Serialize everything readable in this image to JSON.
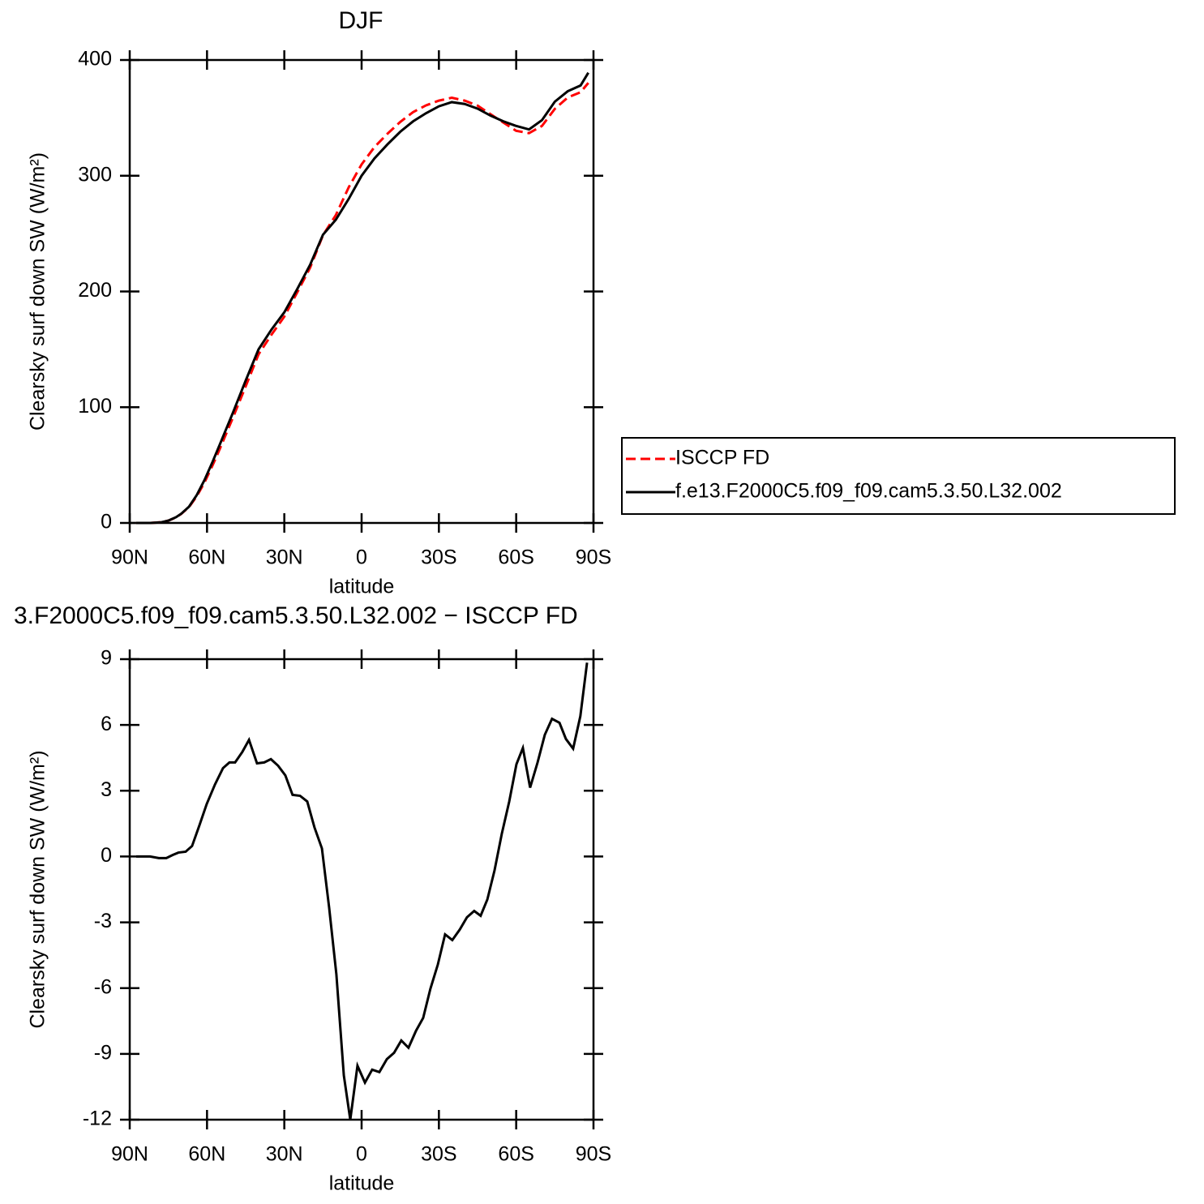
{
  "chart_data": [
    {
      "type": "line",
      "title": "DJF",
      "xlabel": "latitude",
      "ylabel": "Clearsky surf down SW (W/m²)",
      "x": [
        87.5,
        82,
        78,
        75,
        72,
        70,
        67,
        64,
        61,
        58,
        55,
        50,
        45,
        40,
        35,
        30,
        25,
        20,
        15,
        10,
        5,
        0,
        -5,
        -10,
        -15,
        -20,
        -25,
        -30,
        -35,
        -40,
        -45,
        -50,
        -55,
        -60,
        -65,
        -70,
        -75,
        -80,
        -85,
        -88
      ],
      "series": [
        {
          "name": "ISCCP FD",
          "color": "#ff0000",
          "style": "dashed",
          "values": [
            0,
            0,
            0.6,
            2,
            4.9,
            7.8,
            13.7,
            23,
            34.9,
            49,
            64.2,
            90.7,
            118,
            145.7,
            162.6,
            178.3,
            199.2,
            220.5,
            248.6,
            266,
            290,
            309.8,
            324.8,
            336.2,
            346.5,
            355,
            360.8,
            364.9,
            367.4,
            364.9,
            360.6,
            353.2,
            346,
            338.8,
            336.8,
            343,
            357.8,
            367.6,
            372.2,
            380.2
          ]
        },
        {
          "name": "f.e13.F2000C5.f09_f09.cam5.3.50.L32.002",
          "color": "#000000",
          "style": "solid",
          "values": [
            0,
            0,
            0.5,
            2,
            5,
            8,
            14,
            24,
            37,
            52,
            68,
            95,
            123,
            150,
            167,
            182,
            202,
            223,
            249,
            262,
            280,
            300,
            315,
            327,
            338,
            347,
            354,
            360,
            363.6,
            362,
            358,
            352,
            347,
            343,
            340,
            348,
            364,
            373,
            378,
            389
          ]
        }
      ],
      "xlim": [
        90,
        -90
      ],
      "xticks": [
        {
          "value": 90,
          "label": "90N"
        },
        {
          "value": 60,
          "label": "60N"
        },
        {
          "value": 30,
          "label": "30N"
        },
        0,
        {
          "value": -30,
          "label": "30S"
        },
        {
          "value": -60,
          "label": "60S"
        },
        {
          "value": -90,
          "label": "90S"
        }
      ],
      "ylim": [
        0,
        400
      ],
      "yticks": [
        0,
        100,
        200,
        300,
        400
      ],
      "legend": "right"
    },
    {
      "type": "line",
      "title": "3.F2000C5.f09_f09.cam5.3.50.L32.002 − ISCCP FD",
      "xlabel": "latitude",
      "ylabel": "Clearsky surf down SW (W/m²)",
      "x": [
        87.5,
        82.1,
        78.7,
        75.8,
        73.3,
        71.1,
        68.3,
        65.8,
        62.9,
        60.1,
        56.9,
        53.8,
        51.3,
        49.1,
        46.3,
        43.7,
        40.6,
        37.8,
        35.2,
        32.4,
        29.6,
        26.8,
        23.9,
        21.1,
        18.3,
        15.4,
        12.6,
        9.8,
        6.9,
        4.4,
        1.6,
        -1.3,
        -4.1,
        -6.9,
        -9.8,
        -12.6,
        -15.4,
        -18.2,
        -21.1,
        -23.9,
        -26.7,
        -29.6,
        -32.4,
        -35.2,
        -38.1,
        -40.9,
        -43.7,
        -46.2,
        -48.8,
        -51.6,
        -54.4,
        -57.3,
        -60.1,
        -62.6,
        -65.4,
        -68.3,
        -71.1,
        -73.9,
        -76.8,
        -79.3,
        -82.1,
        -84.9,
        -87.5
      ],
      "series": [
        {
          "color": "#000000",
          "style": "solid",
          "values": [
            0,
            0,
            -0.07,
            -0.07,
            0.07,
            0.18,
            0.22,
            0.48,
            1.44,
            2.4,
            3.29,
            4.03,
            4.29,
            4.29,
            4.77,
            5.32,
            4.25,
            4.29,
            4.44,
            4.14,
            3.7,
            2.81,
            2.77,
            2.51,
            1.33,
            0.37,
            -2.33,
            -5.36,
            -9.98,
            -12,
            -9.54,
            -10.31,
            -9.72,
            -9.83,
            -9.24,
            -8.95,
            -8.39,
            -8.72,
            -7.95,
            -7.36,
            -6.03,
            -4.92,
            -3.55,
            -3.81,
            -3.33,
            -2.77,
            -2.48,
            -2.7,
            -1.96,
            -0.63,
            1.03,
            2.51,
            4.21,
            4.95,
            3.14,
            4.29,
            5.55,
            6.28,
            6.1,
            5.36,
            4.92,
            6.4,
            8.84
          ]
        }
      ],
      "xlim": [
        90,
        -90
      ],
      "xticks": [
        {
          "value": 90,
          "label": "90N"
        },
        {
          "value": 60,
          "label": "60N"
        },
        {
          "value": 30,
          "label": "30N"
        },
        0,
        {
          "value": -30,
          "label": "30S"
        },
        {
          "value": -60,
          "label": "60S"
        },
        {
          "value": -90,
          "label": "90S"
        }
      ],
      "ylim": [
        -12,
        9
      ],
      "yticks": [
        -12,
        -9,
        -6,
        -3,
        0,
        3,
        6,
        9
      ]
    }
  ]
}
